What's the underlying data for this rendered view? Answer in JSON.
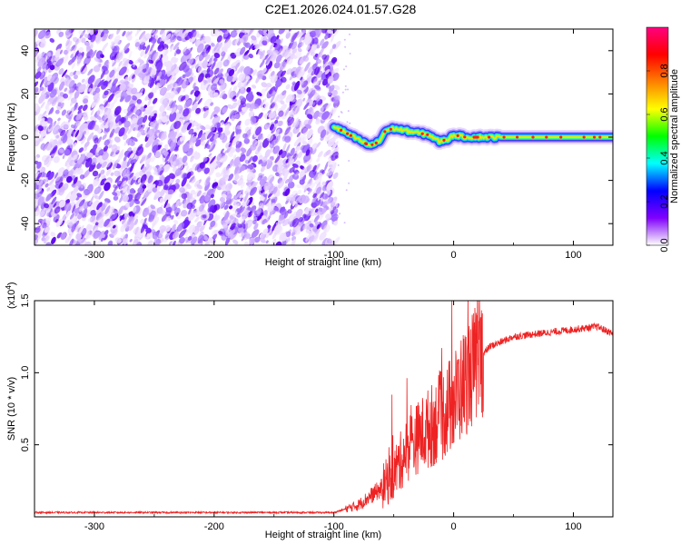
{
  "title": "C2E1.2026.024.01.57.G28",
  "chart_data": [
    {
      "type": "heatmap",
      "xlabel": "Height of straight line (km)",
      "ylabel": "Frequency (Hz)",
      "xlim": [
        -350,
        133
      ],
      "ylim": [
        -50,
        50
      ],
      "xticks": [
        -300,
        -200,
        -100,
        0,
        100
      ],
      "yticks": [
        -40,
        -20,
        0,
        20,
        40
      ],
      "noise_region_x": [
        -350,
        -97
      ],
      "colorbar": {
        "label": "Normalized spectral amplitude",
        "range": [
          0,
          1
        ],
        "ticks": [
          "0.0",
          "0.2",
          "0.4",
          "0.6",
          "0.8"
        ],
        "colors": [
          "#ffffff",
          "#8000ff",
          "#0000ff",
          "#00ffff",
          "#00ff00",
          "#ffff00",
          "#ff8000",
          "#ff0000",
          "#ff0080"
        ]
      },
      "signal_track": {
        "x": [
          -100,
          -90,
          -80,
          -70,
          -62,
          -57,
          -50,
          -40,
          -30,
          -20,
          -12,
          -5,
          0,
          10,
          30,
          60,
          100,
          133
        ],
        "freq": [
          5,
          2,
          -1,
          -4,
          -2,
          3,
          4,
          3,
          2,
          1,
          -2,
          -1,
          1,
          0,
          0,
          0,
          0,
          0
        ]
      }
    },
    {
      "type": "line",
      "xlabel": "Height of straight line (km)",
      "ylabel": "SNR (10 * v/v)",
      "ylabel_multiplier_base": "(x10",
      "ylabel_multiplier_exp": "4",
      "ylabel_multiplier_close": ")",
      "xlim": [
        -350,
        133
      ],
      "ylim": [
        0,
        1.5
      ],
      "xticks": [
        -300,
        -200,
        -100,
        0,
        100
      ],
      "yticks": [
        "0.5",
        "1.0",
        "1.5"
      ],
      "ytick_values": [
        0.5,
        1.0,
        1.5
      ],
      "color": "#ee2222",
      "trend": {
        "x": [
          -350,
          -100,
          -80,
          -60,
          -50,
          -40,
          -30,
          -20,
          -10,
          0,
          10,
          20,
          30,
          50,
          80,
          100,
          120,
          133
        ],
        "y": [
          0.03,
          0.03,
          0.08,
          0.2,
          0.3,
          0.45,
          0.55,
          0.62,
          0.7,
          0.8,
          0.95,
          1.08,
          1.18,
          1.25,
          1.28,
          1.3,
          1.32,
          1.27
        ]
      }
    }
  ]
}
